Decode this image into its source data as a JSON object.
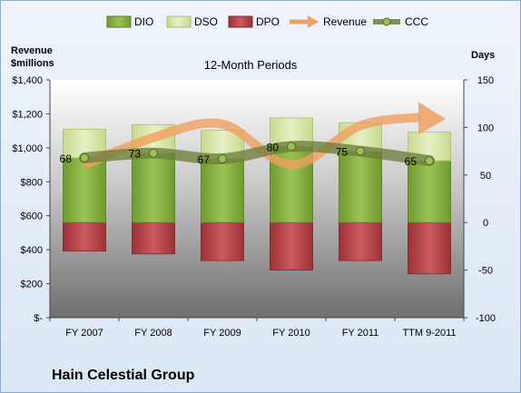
{
  "company": "Hain Celestial Group",
  "chart_data": {
    "type": "bar",
    "title": "12-Month Periods",
    "left_axis_label_line1": "Revenue",
    "left_axis_label_line2": "$millions",
    "right_axis_label": "Days",
    "categories": [
      "FY 2007",
      "FY 2008",
      "FY 2009",
      "FY 2010",
      "FY 2011",
      "TTM 9-2011"
    ],
    "left_ticks": [
      "$-",
      "$200",
      "$400",
      "$600",
      "$800",
      "$1,000",
      "$1,200",
      "$1,400"
    ],
    "right_ticks": [
      "-100",
      "-50",
      "0",
      "50",
      "100",
      "150"
    ],
    "left_range": [
      0,
      1400
    ],
    "right_range": [
      -100,
      150
    ],
    "stacked_day_series": [
      {
        "name": "DIO",
        "values": [
          68,
          73,
          67,
          80,
          75,
          65
        ],
        "color": "#8fb34a"
      },
      {
        "name": "DSO",
        "values": [
          30,
          30,
          30,
          30,
          30,
          30
        ],
        "color": "#d3e3a3"
      },
      {
        "name": "DPO",
        "values": [
          -30,
          -33,
          -40,
          -50,
          -40,
          -54
        ],
        "color": "#b8444a"
      }
    ],
    "line_series": [
      {
        "name": "Revenue",
        "values": [
          900,
          1060,
          1140,
          900,
          1130,
          1180
        ],
        "color": "#f0a060",
        "axis": "left"
      },
      {
        "name": "CCC",
        "values": [
          68,
          73,
          67,
          80,
          75,
          65
        ],
        "color": "#6b7f3b",
        "axis": "right"
      }
    ],
    "ccc_labels": [
      "68",
      "73",
      "67",
      "80",
      "75",
      "65"
    ],
    "legend": [
      "DIO",
      "DSO",
      "DPO",
      "Revenue",
      "CCC"
    ],
    "legend_position": "top",
    "grid": false
  }
}
